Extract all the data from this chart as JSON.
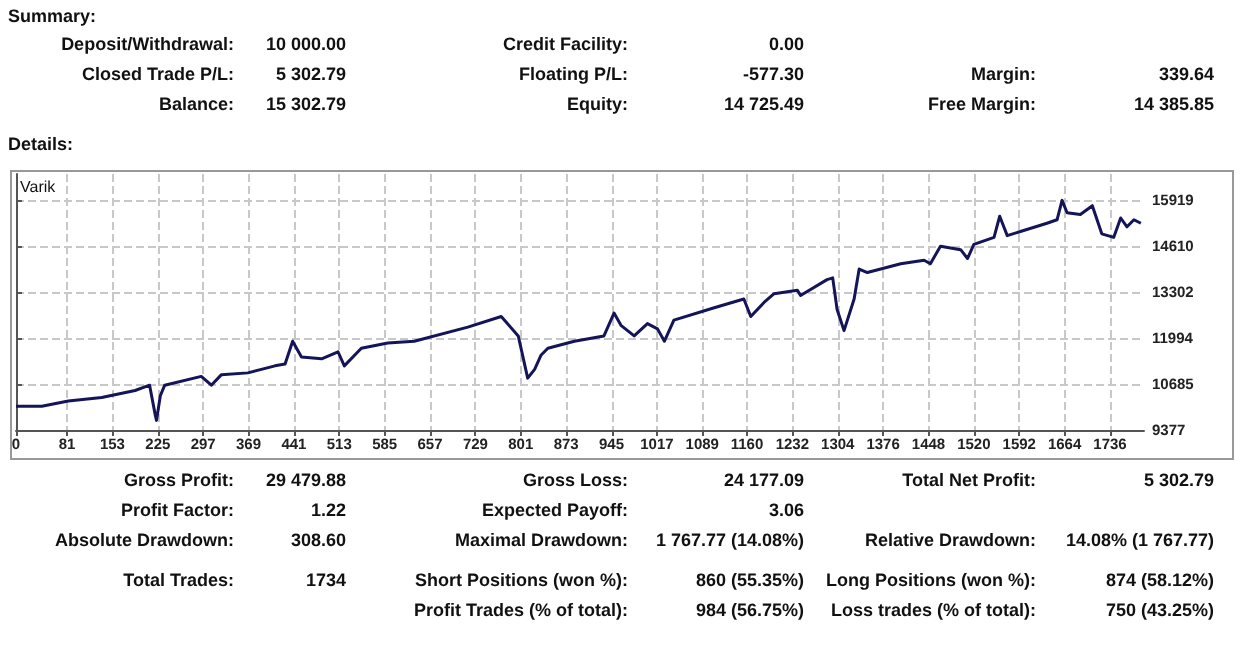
{
  "chart_data": {
    "type": "line",
    "annotations": [
      "Summary:",
      "Deposit/Withdrawal:",
      "10 000.00",
      "Credit Facility:",
      "0.00",
      "Closed Trade P/L:",
      "5 302.79",
      "Floating P/L:",
      "-577.30",
      "Margin:",
      "339.64",
      "Balance:",
      "15 302.79",
      "Equity:",
      "14 725.49",
      "Free Margin:",
      "14 385.85",
      "Details:",
      "Varik",
      "Gross Profit:",
      "29 479.88",
      "Gross Loss:",
      "24 177.09",
      "Total Net Profit:",
      "5 302.79",
      "Profit Factor:",
      "1.22",
      "Expected Payoff:",
      "3.06",
      "Absolute Drawdown:",
      "308.60",
      "Maximal Drawdown:",
      "1 767.77 (14.08%)",
      "Relative Drawdown:",
      "14.08% (1 767.77)",
      "Total Trades:",
      "1734",
      "Short Positions (won %):",
      "860 (55.35%)",
      "Long Positions (won %):",
      "874 (58.12%)",
      "Profit Trades (% of total):",
      "984 (56.75%)",
      "Loss trades (% of total):",
      "750 (43.25%)"
    ],
    "x": [
      0,
      41,
      83,
      136,
      189,
      212,
      221,
      223,
      229,
      236,
      294,
      310,
      326,
      368,
      411,
      427,
      439,
      453,
      485,
      511,
      521,
      548,
      590,
      632,
      717,
      770,
      797,
      812,
      823,
      833,
      844,
      886,
      933,
      949,
      960,
      981,
      1002,
      1018,
      1029,
      1044,
      1108,
      1155,
      1166,
      1187,
      1203,
      1240,
      1245,
      1287,
      1296,
      1303,
      1314,
      1330,
      1338,
      1351,
      1404,
      1441,
      1451,
      1467,
      1499,
      1510,
      1520,
      1552,
      1561,
      1573,
      1636,
      1652,
      1660,
      1668,
      1689,
      1708,
      1723,
      1742,
      1753,
      1763,
      1774,
      1785
    ],
    "series": [
      {
        "color": "#141458",
        "values": [
          10050,
          10050,
          10200,
          10300,
          10500,
          10650,
          9800,
          9650,
          10350,
          10650,
          10900,
          10650,
          10950,
          11000,
          11200,
          11250,
          11900,
          11450,
          11400,
          11600,
          11200,
          11700,
          11850,
          11900,
          12300,
          12600,
          12050,
          10850,
          11100,
          11500,
          11700,
          11900,
          12050,
          12700,
          12350,
          12050,
          12400,
          12250,
          11900,
          12500,
          12850,
          13100,
          12600,
          13000,
          13250,
          13350,
          13200,
          13650,
          13700,
          12800,
          12200,
          13100,
          13950,
          13850,
          14100,
          14200,
          14100,
          14600,
          14500,
          14250,
          14650,
          14850,
          15450,
          14900,
          15250,
          15350,
          15900,
          15550,
          15500,
          15750,
          14950,
          14850,
          15400,
          15150,
          15350,
          15250
        ]
      }
    ],
    "xlim": [
      0,
      1790
    ],
    "xticks": [
      0,
      81,
      153,
      225,
      297,
      369,
      441,
      513,
      585,
      657,
      729,
      801,
      873,
      945,
      1017,
      1089,
      1160,
      1232,
      1304,
      1376,
      1448,
      1520,
      1592,
      1664,
      1736
    ],
    "ylim": [
      9377,
      16650
    ],
    "yticks": [
      9377,
      10685,
      11994,
      13302,
      14610,
      15919
    ],
    "grid": true,
    "marker": "none",
    "line_style": "solid"
  }
}
